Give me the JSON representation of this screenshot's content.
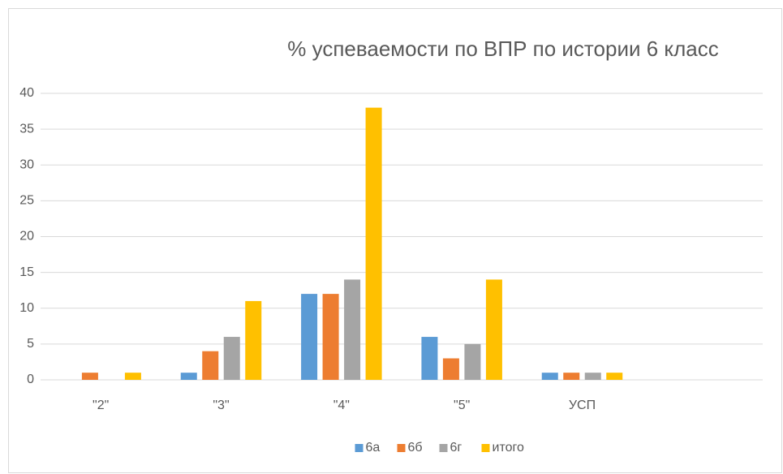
{
  "chart_data": {
    "type": "bar",
    "title": "% успеваемости по ВПР по истории 6 класс",
    "categories": [
      "\"2\"",
      "\"3\"",
      "\"4\"",
      "\"5\"",
      "УСП",
      null
    ],
    "series": [
      {
        "name": "6а",
        "color": "#5b9bd5",
        "values": [
          0,
          1,
          12,
          6,
          1,
          null
        ]
      },
      {
        "name": "6б",
        "color": "#ed7d31",
        "values": [
          1,
          4,
          12,
          3,
          1,
          null
        ]
      },
      {
        "name": "6г",
        "color": "#a5a5a5",
        "values": [
          0,
          6,
          14,
          5,
          1,
          null
        ]
      },
      {
        "name": "итого",
        "color": "#ffc000",
        "values": [
          1,
          11,
          38,
          14,
          1,
          null
        ]
      }
    ],
    "ylim": [
      0,
      40
    ],
    "yticks": [
      0,
      5,
      10,
      15,
      20,
      25,
      30,
      35,
      40
    ],
    "grid": true,
    "legend": "bottom"
  }
}
